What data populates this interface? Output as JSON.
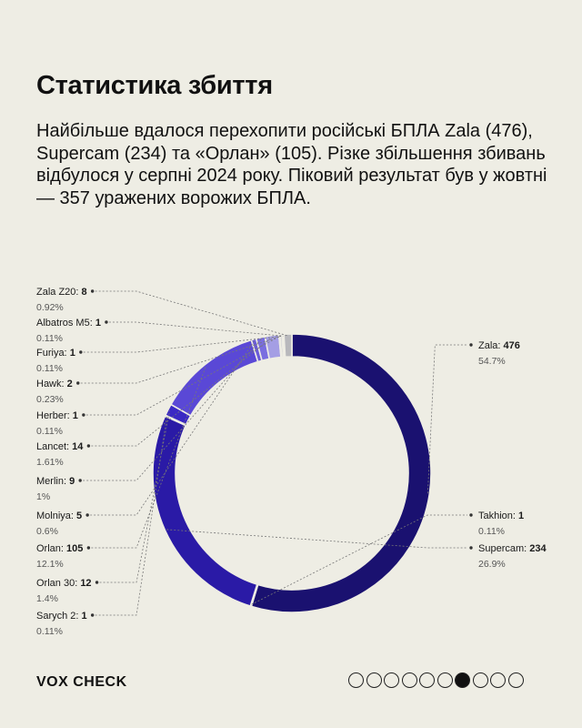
{
  "header": {
    "title": "Статистика збиття",
    "subtitle": "Найбільше вдалося перехопити російські БПЛА Zala (476), Supercam (234) та «Орлан» (105). Різке збільшення збивань відбулося у серпні 2024 року. Піковий результат був у жовтні — 357 уражених ворожих БПЛА."
  },
  "chart_data": {
    "type": "pie",
    "variant": "donut",
    "order": "clockwise from top",
    "slices": [
      {
        "label": "Zala",
        "value": 476,
        "percent": "54.7%",
        "color": "#1a1170",
        "side": "right"
      },
      {
        "label": "Takhion",
        "value": 1,
        "percent": "0.11%",
        "color": "#1a1170",
        "side": "right"
      },
      {
        "label": "Supercam",
        "value": 234,
        "percent": "26.9%",
        "color": "#2a1aa6",
        "side": "right"
      },
      {
        "label": "Sarych 2",
        "value": 1,
        "percent": "0.11%",
        "color": "#2a1aa6",
        "side": "left"
      },
      {
        "label": "Orlan 30",
        "value": 12,
        "percent": "1.4%",
        "color": "#3a28c4",
        "side": "left"
      },
      {
        "label": "Orlan",
        "value": 105,
        "percent": "12.1%",
        "color": "#5a48d6",
        "side": "left"
      },
      {
        "label": "Molniya",
        "value": 5,
        "percent": "0.6%",
        "color": "#6a5ad8",
        "side": "left"
      },
      {
        "label": "Merlin",
        "value": 9,
        "percent": "1%",
        "color": "#7a6ee0",
        "side": "left"
      },
      {
        "label": "Lancet",
        "value": 14,
        "percent": "1.61%",
        "color": "#a49ee4",
        "side": "left"
      },
      {
        "label": "Herber",
        "value": 1,
        "percent": "0.11%",
        "color": "#b4b0e8",
        "side": "left"
      },
      {
        "label": "Hawk",
        "value": 2,
        "percent": "0.23%",
        "color": "#c4c4cc",
        "side": "left"
      },
      {
        "label": "Furiya",
        "value": 1,
        "percent": "0.11%",
        "color": "#c4c4c8",
        "side": "left"
      },
      {
        "label": "Albatros M5",
        "value": 1,
        "percent": "0.11%",
        "color": "#c0c0c4",
        "side": "left"
      },
      {
        "label": "Zala Z20",
        "value": 8,
        "percent": "0.92%",
        "color": "#b8b8bc",
        "side": "left"
      }
    ]
  },
  "footer": {
    "brand": "VOX CHECK",
    "pagination_total": 10,
    "pagination_active": 7
  }
}
